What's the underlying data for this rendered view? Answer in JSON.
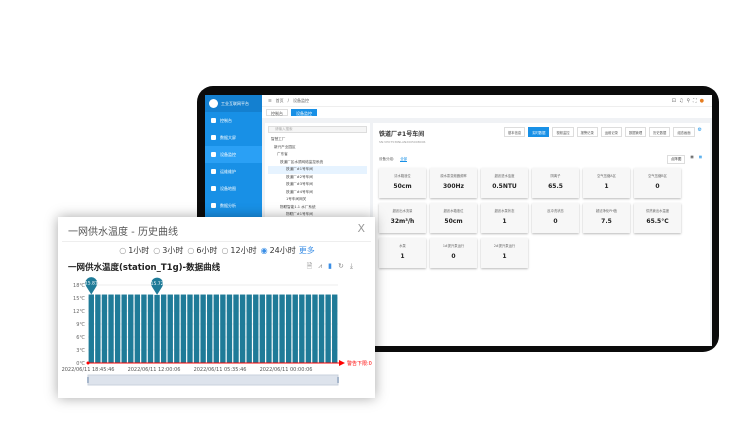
{
  "app": {
    "title": "工业互联网平台",
    "breadcrumb": [
      "首页",
      "设备监控"
    ]
  },
  "sidebar": {
    "items": [
      {
        "label": "控制台"
      },
      {
        "label": "数据大屏"
      },
      {
        "label": "设备监控",
        "active": true
      },
      {
        "label": "运维维护"
      },
      {
        "label": "设备地图"
      },
      {
        "label": "数据分析"
      },
      {
        "label": "配置管理"
      }
    ]
  },
  "tabs": [
    {
      "label": "控制台"
    },
    {
      "label": "设备监控",
      "active": true
    }
  ],
  "tree": {
    "search_placeholder": "请输入搜索",
    "nodes": [
      "智慧工厂",
      "新兴产业园区",
      "广东省",
      "铁道厂区水质网络监控系统",
      "铁道厂#1号车间",
      "铁道厂#2号车间",
      "铁道厂#3号车间",
      "铁道厂#4号车间",
      "1号车间网关",
      "物联智能1.1 水厂系统",
      "物联厂#1号车间",
      "物联厂#2号车间"
    ]
  },
  "detail": {
    "title": "铁道厂#1号车间",
    "subtitle": "SN:VPO7536NLAN2005008006",
    "buttons": [
      "基本信息",
      "实时数据",
      "视频监控",
      "报警记录",
      "运维记录",
      "数据管理",
      "历史数据",
      "组态画面"
    ],
    "active_button": "实时数据",
    "group_label": "设备分组:",
    "group_value": "全部",
    "view_label": "点阵图",
    "cards": [
      {
        "label": "清水箱液位",
        "value": "50cm"
      },
      {
        "label": "原水泵变频器频率",
        "value": "300Hz"
      },
      {
        "label": "超滤进水浊度",
        "value": "0.5NTU"
      },
      {
        "label": "阴离子",
        "value": "65.5"
      },
      {
        "label": "空气压缩A区",
        "value": "1"
      },
      {
        "label": "空气压缩B区",
        "value": "0"
      },
      {
        "label": "超滤出水流量",
        "value": "32m³/h"
      },
      {
        "label": "超滤水箱液位",
        "value": "50cm"
      },
      {
        "label": "超滤水泵状态",
        "value": "1"
      },
      {
        "label": "反冲洗状态",
        "value": "0"
      },
      {
        "label": "超滤净化PH值",
        "value": "7.5"
      },
      {
        "label": "供热管出水温度",
        "value": "65.5°C"
      },
      {
        "label": "水泵",
        "value": "1"
      },
      {
        "label": "1#提升泵运行",
        "value": "0"
      },
      {
        "label": "2#提升泵运行",
        "value": "1"
      }
    ]
  },
  "popup": {
    "title": "一网供水温度 - 历史曲线",
    "close": "X",
    "ranges": [
      "1小时",
      "3小时",
      "6小时",
      "12小时",
      "24小时"
    ],
    "selected_range": "24小时",
    "more": "更多",
    "chart_title": "一网供水温度(station_T1g)-数据曲线"
  },
  "chart_data": {
    "type": "bar",
    "title": "一网供水温度(station_T1g)-数据曲线",
    "ylim": [
      0,
      18
    ],
    "yticks": [
      "0℃",
      "3℃",
      "6℃",
      "9℃",
      "12℃",
      "15℃",
      "18℃"
    ],
    "xticks": [
      "2022/06/11 18:45:46",
      "2022/06/11 12:00:06",
      "2022/06/11 05:35:46",
      "2022/06/11 00:00:06"
    ],
    "values": [
      15.81,
      15.8,
      15.8,
      15.8,
      15.8,
      15.8,
      15.8,
      15.8,
      15.8,
      15.8,
      15.72,
      15.8,
      15.8,
      15.8,
      15.8,
      15.8,
      15.8,
      15.8,
      15.8,
      15.8,
      15.8,
      15.8,
      15.8,
      15.8,
      15.8,
      15.8,
      15.8,
      15.8,
      15.8,
      15.8,
      15.8,
      15.8,
      15.8,
      15.8,
      15.8,
      15.8,
      15.8,
      15.8
    ],
    "markers": [
      {
        "index": 0,
        "label": "15.81"
      },
      {
        "index": 10,
        "label": "15.72"
      }
    ],
    "threshold": {
      "label": "警告下限:0",
      "value": 0,
      "color": "#ff0000"
    },
    "bar_color": "#1f7b98",
    "grid": true
  }
}
